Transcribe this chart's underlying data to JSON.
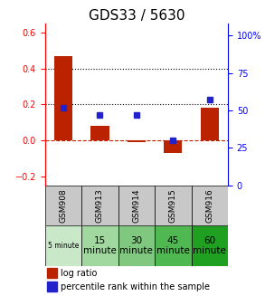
{
  "title": "GDS33 / 5630",
  "samples": [
    "GSM908",
    "GSM913",
    "GSM914",
    "GSM915",
    "GSM916"
  ],
  "time_labels": [
    "5 minute",
    "15\nminute",
    "30\nminute",
    "45\nminute",
    "60\nminute"
  ],
  "log_ratio": [
    0.47,
    0.08,
    -0.01,
    -0.07,
    0.18
  ],
  "percentile_rank_pct": [
    52,
    47,
    47,
    30,
    57
  ],
  "bar_color": "#bb2200",
  "dot_color": "#2222cc",
  "ylim_left": [
    -0.25,
    0.65
  ],
  "ylim_right": [
    0,
    108
  ],
  "yticks_left": [
    -0.2,
    0.0,
    0.2,
    0.4,
    0.6
  ],
  "yticks_right": [
    0,
    25,
    50,
    75,
    100
  ],
  "dotted_lines": [
    0.2,
    0.4
  ],
  "sample_cell_color": "#c8c8c8",
  "time_colors": [
    "#c8e8c8",
    "#a0d8a0",
    "#80c880",
    "#50b850",
    "#20a020"
  ],
  "title_fontsize": 11,
  "tick_fontsize": 7,
  "legend_fontsize": 7
}
